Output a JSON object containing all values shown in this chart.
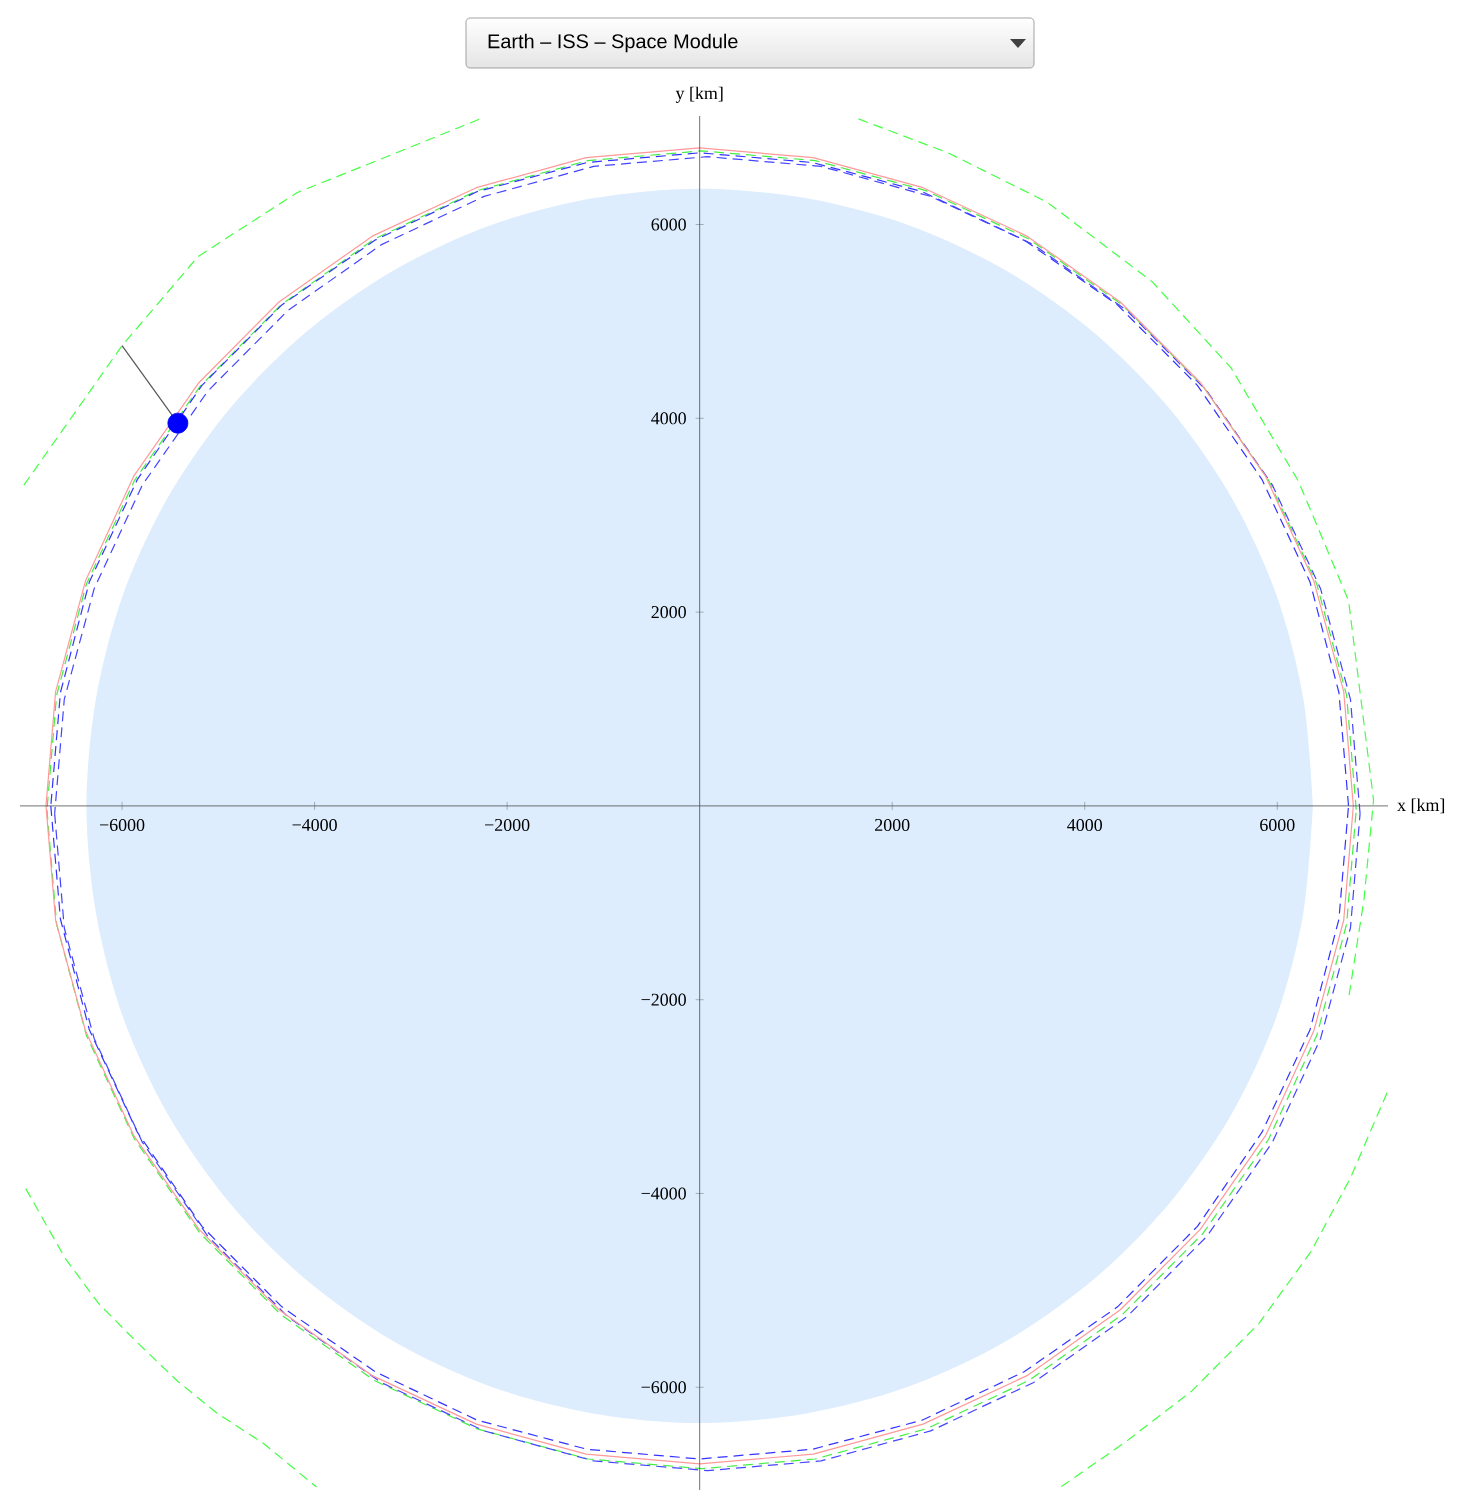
{
  "chart_data": {
    "type": "line",
    "title": "Earth – ISS – Space Module",
    "xlabel": "x [km]",
    "ylabel": "y [km]",
    "xlim": [
      -7060,
      7150
    ],
    "ylim": [
      -7060,
      7120
    ],
    "xticks": [
      {
        "value": -6000,
        "label": "−6000"
      },
      {
        "value": -4000,
        "label": "−4000"
      },
      {
        "value": -2000,
        "label": "−2000"
      },
      2000,
      4000,
      6000
    ],
    "yticks": [
      {
        "value": -6000,
        "label": "−6000"
      },
      {
        "value": -4000,
        "label": "−4000"
      },
      {
        "value": -2000,
        "label": "−2000"
      },
      2000,
      4000,
      6000
    ],
    "grid": false,
    "series": [
      {
        "type": "area",
        "color": "#ddedfd",
        "x": [
          6370,
          6270,
          5990,
          5520,
          4880,
          4100,
          3190,
          2180,
          1110,
          0,
          -1110,
          -2180,
          -3190,
          -4100,
          -4880,
          -5520,
          -5990,
          -6270,
          -6370,
          -6270,
          -5990,
          -5520,
          -4880,
          -4100,
          -3190,
          -2180,
          -1110,
          0,
          1110,
          2180,
          3190,
          4100,
          4880,
          5520,
          5990,
          6270,
          6370
        ],
        "values": [
          0,
          1110,
          2180,
          3190,
          4100,
          4880,
          5520,
          5990,
          6270,
          6370,
          6270,
          5990,
          5520,
          4880,
          4100,
          3190,
          2180,
          1110,
          0,
          -1110,
          -2180,
          -3190,
          -4100,
          -4880,
          -5520,
          -5990,
          -6270,
          -6370,
          -6270,
          -5990,
          -5520,
          -4880,
          -4100,
          -3190,
          -2180,
          -1110,
          0
        ]
      },
      {
        "line_style": "dashed",
        "color": "#44ee44",
        "x": [
          6820,
          6720,
          6410,
          5910,
          5230,
          4390,
          3420,
          2350,
          1200,
          20,
          -1160,
          -2310,
          -3380,
          -4350,
          -5190,
          -5870,
          -6370,
          -6680,
          -6780,
          -6680,
          -6370,
          -5870,
          -5190,
          -4350,
          -3380,
          -2310,
          -1160,
          20,
          1200,
          2350,
          3420,
          4390,
          5230,
          5910,
          6410,
          6720,
          6820
        ],
        "values": [
          -40,
          1140,
          2290,
          3360,
          4330,
          5170,
          5850,
          6350,
          6660,
          6760,
          6660,
          6350,
          5850,
          5170,
          4330,
          3360,
          2290,
          1140,
          -40,
          -1220,
          -2370,
          -3440,
          -4410,
          -5250,
          -5930,
          -6430,
          -6740,
          -6840,
          -6740,
          -6430,
          -5930,
          -5250,
          -4410,
          -3440,
          -2370,
          -1220,
          -40
        ]
      },
      {
        "line_style": "dashed",
        "color": "#3333ff",
        "x": [
          6740,
          6640,
          6340,
          5840,
          5170,
          4340,
          3370,
          2310,
          1170,
          0,
          -1170,
          -2310,
          -3370,
          -4340,
          -5170,
          -5840,
          -6340,
          -6640,
          -6740,
          -6640,
          -6340,
          -5840,
          -5170,
          -4340,
          -3370,
          -2310,
          -1170,
          0,
          1170,
          2310,
          3370,
          4340,
          5170,
          5840,
          6340,
          6640,
          6740
        ],
        "values": [
          0,
          1170,
          2310,
          3370,
          4340,
          5170,
          5840,
          6340,
          6640,
          6740,
          6640,
          6340,
          5840,
          5170,
          4340,
          3370,
          2310,
          1170,
          0,
          -1170,
          -2310,
          -3370,
          -4340,
          -5170,
          -5840,
          -6340,
          -6640,
          -6740,
          -6640,
          -6340,
          -5840,
          -5170,
          -4340,
          -3370,
          -2310,
          -1170,
          0
        ]
      },
      {
        "line_style": "dashed",
        "color": "#4444ff",
        "x": [
          6860,
          6760,
          6450,
          5950,
          5270,
          4440,
          3470,
          2400,
          1260,
          80,
          -1100,
          -2240,
          -3310,
          -4280,
          -5110,
          -5790,
          -6290,
          -6600,
          -6700,
          -6600,
          -6290,
          -5790,
          -5110,
          -4280,
          -3310,
          -2240,
          -1100,
          80,
          1260,
          2400,
          3470,
          4440,
          5270,
          5950,
          6450,
          6760,
          6860
        ],
        "values": [
          -80,
          1100,
          2240,
          3310,
          4280,
          5110,
          5790,
          6290,
          6600,
          6700,
          6600,
          6290,
          5790,
          5110,
          4280,
          3310,
          2240,
          1100,
          -80,
          -1260,
          -2400,
          -3470,
          -4440,
          -5270,
          -5950,
          -6450,
          -6760,
          -6860,
          -6760,
          -6450,
          -5950,
          -5270,
          -4440,
          -3470,
          -2400,
          -1260,
          -80
        ]
      },
      {
        "line_style": "solid",
        "color": "#ff9999",
        "x": [
          6790,
          6690,
          6380,
          5880,
          5200,
          4370,
          3400,
          2320,
          1180,
          0,
          -1180,
          -2320,
          -3400,
          -4370,
          -5200,
          -5880,
          -6380,
          -6690,
          -6790,
          -6690,
          -6380,
          -5880,
          -5200,
          -4370,
          -3400,
          -2320,
          -1180,
          0,
          1180,
          2320,
          3400,
          4370,
          5200,
          5880,
          6380,
          6690,
          6790
        ],
        "values": [
          0,
          1180,
          2320,
          3400,
          4370,
          5200,
          5880,
          6380,
          6690,
          6790,
          6690,
          6380,
          5880,
          5200,
          4370,
          3400,
          2320,
          1180,
          0,
          -1180,
          -2320,
          -3400,
          -4370,
          -5200,
          -5880,
          -6380,
          -6690,
          -6790,
          -6690,
          -6380,
          -5880,
          -5200,
          -4370,
          -3400,
          -2320,
          -1180,
          0
        ]
      },
      {
        "line_style": "dashed",
        "color": "#44ff44",
        "x": [
          -7020,
          -6000,
          -5210,
          -4180,
          -3150,
          -2230,
          null,
          1650,
          2580,
          3610,
          4700,
          5520,
          6220,
          6740,
          7000,
          6900,
          6740,
          null,
          -7000,
          -6590,
          -6240,
          -5830,
          -5420,
          -5010,
          -4530,
          -3980,
          null,
          7140,
          6760,
          6350,
          5810,
          5110,
          4430,
          3750
        ],
        "values": [
          3310,
          4750,
          5670,
          6330,
          6740,
          7110,
          null,
          7090,
          6740,
          6230,
          5410,
          4520,
          3350,
          2120,
          60,
          -970,
          -1990,
          null,
          -3950,
          -4670,
          -5140,
          -5550,
          -5940,
          -6270,
          -6580,
          -7030,
          null,
          -2960,
          -3840,
          -4600,
          -5340,
          -6040,
          -6560,
          -7030
        ]
      },
      {
        "line_style": "solid",
        "color": "#555555",
        "x": [
          -5420,
          -6000
        ],
        "values": [
          3950,
          4750
        ]
      },
      {
        "type": "scatter",
        "marker": "circle",
        "color": "#0000ff",
        "x": [
          -5420
        ],
        "values": [
          3950
        ]
      }
    ]
  }
}
